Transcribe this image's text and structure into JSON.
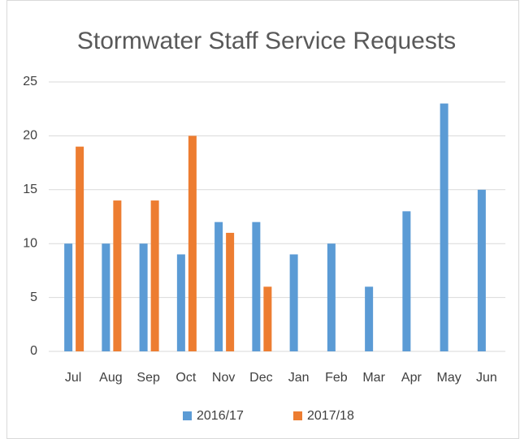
{
  "chart_data": {
    "type": "bar",
    "title": "Stormwater Staff Service Requests",
    "categories": [
      "Jul",
      "Aug",
      "Sep",
      "Oct",
      "Nov",
      "Dec",
      "Jan",
      "Feb",
      "Mar",
      "Apr",
      "May",
      "Jun"
    ],
    "series": [
      {
        "name": "2016/17",
        "color": "#5b9bd5",
        "values": [
          10,
          10,
          10,
          9,
          12,
          12,
          9,
          10,
          6,
          13,
          23,
          15
        ]
      },
      {
        "name": "2017/18",
        "color": "#ed7d31",
        "values": [
          19,
          14,
          14,
          20,
          11,
          6,
          null,
          null,
          null,
          null,
          null,
          null
        ]
      }
    ],
    "ylim": [
      0,
      25
    ],
    "yticks": [
      0,
      5,
      10,
      15,
      20,
      25
    ],
    "grid": true,
    "legend": "bottom"
  }
}
